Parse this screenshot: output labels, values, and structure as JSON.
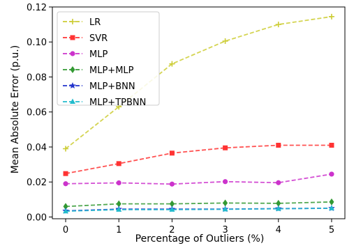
{
  "chart_data": {
    "type": "line",
    "title": "",
    "xlabel": "Percentage of Outliers (%)",
    "ylabel": "Mean Absolute Error (p.u.)",
    "x": [
      0,
      1,
      2,
      3,
      4,
      5
    ],
    "xticks": [
      "0",
      "1",
      "2",
      "3",
      "4",
      "5"
    ],
    "yticks": [
      "0.00",
      "0.02",
      "0.04",
      "0.06",
      "0.08",
      "0.10",
      "0.12"
    ],
    "xlim": [
      -0.25,
      5.25
    ],
    "ylim": [
      -0.001,
      0.12
    ],
    "grid": false,
    "legend_position": "upper-left",
    "series": [
      {
        "name": "LR",
        "color": "#cccc33",
        "marker": "plus",
        "values": [
          0.039,
          0.063,
          0.0875,
          0.1005,
          0.11,
          0.1145
        ]
      },
      {
        "name": "SVR",
        "color": "#ff3333",
        "marker": "square",
        "values": [
          0.0248,
          0.0305,
          0.0365,
          0.0395,
          0.041,
          0.041
        ]
      },
      {
        "name": "MLP",
        "color": "#cc33cc",
        "marker": "circle",
        "values": [
          0.019,
          0.0195,
          0.0188,
          0.0202,
          0.0196,
          0.0245
        ]
      },
      {
        "name": "MLP+MLP",
        "color": "#339933",
        "marker": "diamond",
        "values": [
          0.006,
          0.0075,
          0.0075,
          0.008,
          0.0078,
          0.0086
        ]
      },
      {
        "name": "MLP+BNN",
        "color": "#2233cc",
        "marker": "star",
        "values": [
          0.0035,
          0.0045,
          0.0045,
          0.0045,
          0.0048,
          0.005
        ]
      },
      {
        "name": "MLP+TPBNN",
        "color": "#22bbcc",
        "marker": "triangle",
        "values": [
          0.0033,
          0.0042,
          0.0042,
          0.0044,
          0.0047,
          0.005
        ]
      }
    ]
  }
}
